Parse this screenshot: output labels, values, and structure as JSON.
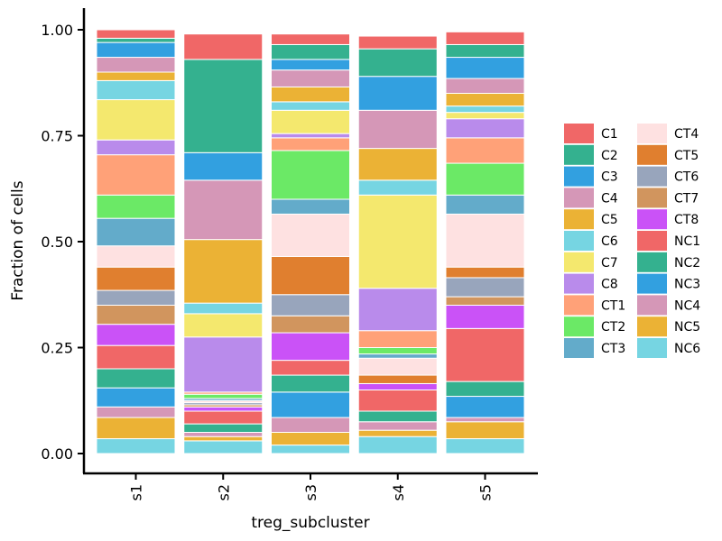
{
  "chart_data": {
    "type": "bar",
    "stacked": true,
    "xlabel": "treg_subcluster",
    "ylabel": "Fraction of cells",
    "categories": [
      "s1",
      "s2",
      "s3",
      "s4",
      "s5"
    ],
    "ylim": [
      0,
      1
    ],
    "yticks": [
      "0.00",
      "0.25",
      "0.50",
      "0.75",
      "1.00"
    ],
    "grid": false,
    "legend_position": "right",
    "series": [
      {
        "name": "NC6",
        "color": "#76D5E2",
        "values": [
          0.035,
          0.03,
          0.02,
          0.04,
          0.035
        ]
      },
      {
        "name": "NC5",
        "color": "#EBB235",
        "values": [
          0.05,
          0.01,
          0.03,
          0.015,
          0.04
        ]
      },
      {
        "name": "NC4",
        "color": "#D597B7",
        "values": [
          0.025,
          0.01,
          0.035,
          0.02,
          0.01
        ]
      },
      {
        "name": "NC3",
        "color": "#32A0E0",
        "values": [
          0.045,
          0.0,
          0.06,
          0.0,
          0.05
        ]
      },
      {
        "name": "NC2",
        "color": "#34B18F",
        "values": [
          0.045,
          0.02,
          0.04,
          0.025,
          0.035
        ]
      },
      {
        "name": "NC1",
        "color": "#F06767",
        "values": [
          0.055,
          0.03,
          0.035,
          0.05,
          0.125
        ]
      },
      {
        "name": "CT8",
        "color": "#CA52F7",
        "values": [
          0.05,
          0.01,
          0.065,
          0.015,
          0.055
        ]
      },
      {
        "name": "CT7",
        "color": "#D1955E",
        "values": [
          0.045,
          0.005,
          0.04,
          0.0,
          0.02
        ]
      },
      {
        "name": "CT6",
        "color": "#98A5BC",
        "values": [
          0.035,
          0.005,
          0.05,
          0.0,
          0.045
        ]
      },
      {
        "name": "CT5",
        "color": "#E07F2F",
        "values": [
          0.055,
          0.0,
          0.09,
          0.02,
          0.025
        ]
      },
      {
        "name": "CT4",
        "color": "#FEE1E1",
        "values": [
          0.05,
          0.005,
          0.1,
          0.04,
          0.125
        ]
      },
      {
        "name": "CT3",
        "color": "#63ABCA",
        "values": [
          0.065,
          0.005,
          0.035,
          0.01,
          0.045
        ]
      },
      {
        "name": "CT2",
        "color": "#6BE966",
        "values": [
          0.055,
          0.01,
          0.115,
          0.015,
          0.075
        ]
      },
      {
        "name": "CT1",
        "color": "#FFA178",
        "values": [
          0.095,
          0.005,
          0.03,
          0.04,
          0.06
        ]
      },
      {
        "name": "C8",
        "color": "#B98BEB",
        "values": [
          0.035,
          0.13,
          0.01,
          0.1,
          0.045
        ]
      },
      {
        "name": "C7",
        "color": "#F4E86E",
        "values": [
          0.095,
          0.055,
          0.055,
          0.22,
          0.015
        ]
      },
      {
        "name": "C6",
        "color": "#76D5E2",
        "values": [
          0.045,
          0.025,
          0.02,
          0.035,
          0.015
        ]
      },
      {
        "name": "C5",
        "color": "#EBB235",
        "values": [
          0.02,
          0.15,
          0.035,
          0.075,
          0.03
        ]
      },
      {
        "name": "C4",
        "color": "#D597B7",
        "values": [
          0.035,
          0.14,
          0.04,
          0.09,
          0.035
        ]
      },
      {
        "name": "C3",
        "color": "#32A0E0",
        "values": [
          0.035,
          0.065,
          0.025,
          0.08,
          0.05
        ]
      },
      {
        "name": "C2",
        "color": "#34B18F",
        "values": [
          0.01,
          0.22,
          0.035,
          0.065,
          0.03
        ]
      },
      {
        "name": "C1",
        "color": "#F06767",
        "values": [
          0.02,
          0.06,
          0.025,
          0.03,
          0.03
        ]
      }
    ],
    "legend_columns": [
      [
        {
          "label": "C1",
          "color": "#F06767"
        },
        {
          "label": "C2",
          "color": "#34B18F"
        },
        {
          "label": "C3",
          "color": "#32A0E0"
        },
        {
          "label": "C4",
          "color": "#D597B7"
        },
        {
          "label": "C5",
          "color": "#EBB235"
        },
        {
          "label": "C6",
          "color": "#76D5E2"
        },
        {
          "label": "C7",
          "color": "#F4E86E"
        },
        {
          "label": "C8",
          "color": "#B98BEB"
        },
        {
          "label": "CT1",
          "color": "#FFA178"
        },
        {
          "label": "CT2",
          "color": "#6BE966"
        },
        {
          "label": "CT3",
          "color": "#63ABCA"
        }
      ],
      [
        {
          "label": "CT4",
          "color": "#FEE1E1"
        },
        {
          "label": "CT5",
          "color": "#E07F2F"
        },
        {
          "label": "CT6",
          "color": "#98A5BC"
        },
        {
          "label": "CT7",
          "color": "#D1955E"
        },
        {
          "label": "CT8",
          "color": "#CA52F7"
        },
        {
          "label": "NC1",
          "color": "#F06767"
        },
        {
          "label": "NC2",
          "color": "#34B18F"
        },
        {
          "label": "NC3",
          "color": "#32A0E0"
        },
        {
          "label": "NC4",
          "color": "#D597B7"
        },
        {
          "label": "NC5",
          "color": "#EBB235"
        },
        {
          "label": "NC6",
          "color": "#76D5E2"
        }
      ]
    ]
  }
}
